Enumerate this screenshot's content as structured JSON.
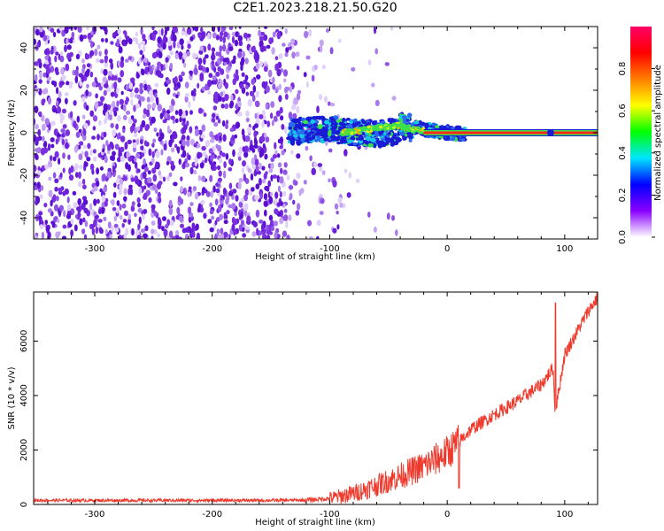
{
  "title": "C2E1.2023.218.21.50.G20",
  "colors": {
    "spectro_bg": "#ffffff",
    "speckle": "#6a1fd8",
    "snr_line": "#ee3a2c",
    "feature_band": "#1b1bd6"
  },
  "chart_data": [
    {
      "type": "heatmap",
      "xlabel": "Height of straight line (km)",
      "ylabel": "Frequency (Hz)",
      "xlim": [
        -352,
        128
      ],
      "ylim": [
        -50,
        50
      ],
      "xticks": [
        -300,
        -200,
        -100,
        0,
        100
      ],
      "xtick_labels": [
        "-300",
        "-200",
        "-100",
        "0",
        "100"
      ],
      "yticks": [
        -40,
        -20,
        0,
        20,
        40
      ],
      "ytick_labels": [
        "-40",
        "-20",
        "0",
        "20",
        "40"
      ],
      "colorbar": {
        "label": "Normalized spectral amplitude",
        "range": [
          0,
          1
        ],
        "ticks": [
          0.0,
          0.2,
          0.4,
          0.6,
          0.8
        ],
        "tick_labels": [
          "0.0",
          "0.2",
          "0.4",
          "0.6",
          "0.8"
        ],
        "colormap": [
          "#ffffff",
          "#8a00ff",
          "#0000ff",
          "#00e5ff",
          "#00ff00",
          "#ffff00",
          "#ff7f00",
          "#ff0000",
          "#ff0066"
        ]
      },
      "grid": false
    },
    {
      "type": "line",
      "xlabel": "Height of straight line (km)",
      "ylabel": "SNR (10 * v/v)",
      "xlim": [
        -352,
        128
      ],
      "ylim": [
        0,
        7800
      ],
      "xticks": [
        -300,
        -200,
        -100,
        0,
        100
      ],
      "xtick_labels": [
        "-300",
        "-200",
        "-100",
        "0",
        "100"
      ],
      "yticks": [
        0,
        2000,
        4000,
        6000
      ],
      "ytick_labels": [
        "0",
        "2000",
        "4000",
        "6000"
      ],
      "series": [
        {
          "x": [
            -352,
            -300,
            -250,
            -200,
            -150,
            -120,
            -100,
            -80,
            -60,
            -40,
            -20,
            0,
            10,
            20,
            40,
            60,
            80,
            90,
            92,
            100,
            110,
            120,
            128
          ],
          "y": [
            150,
            150,
            150,
            150,
            150,
            160,
            220,
            400,
            700,
            1050,
            1400,
            1900,
            2300,
            2750,
            3300,
            3800,
            4400,
            5000,
            3400,
            5500,
            6300,
            7100,
            7600
          ]
        }
      ],
      "grid": false
    }
  ]
}
